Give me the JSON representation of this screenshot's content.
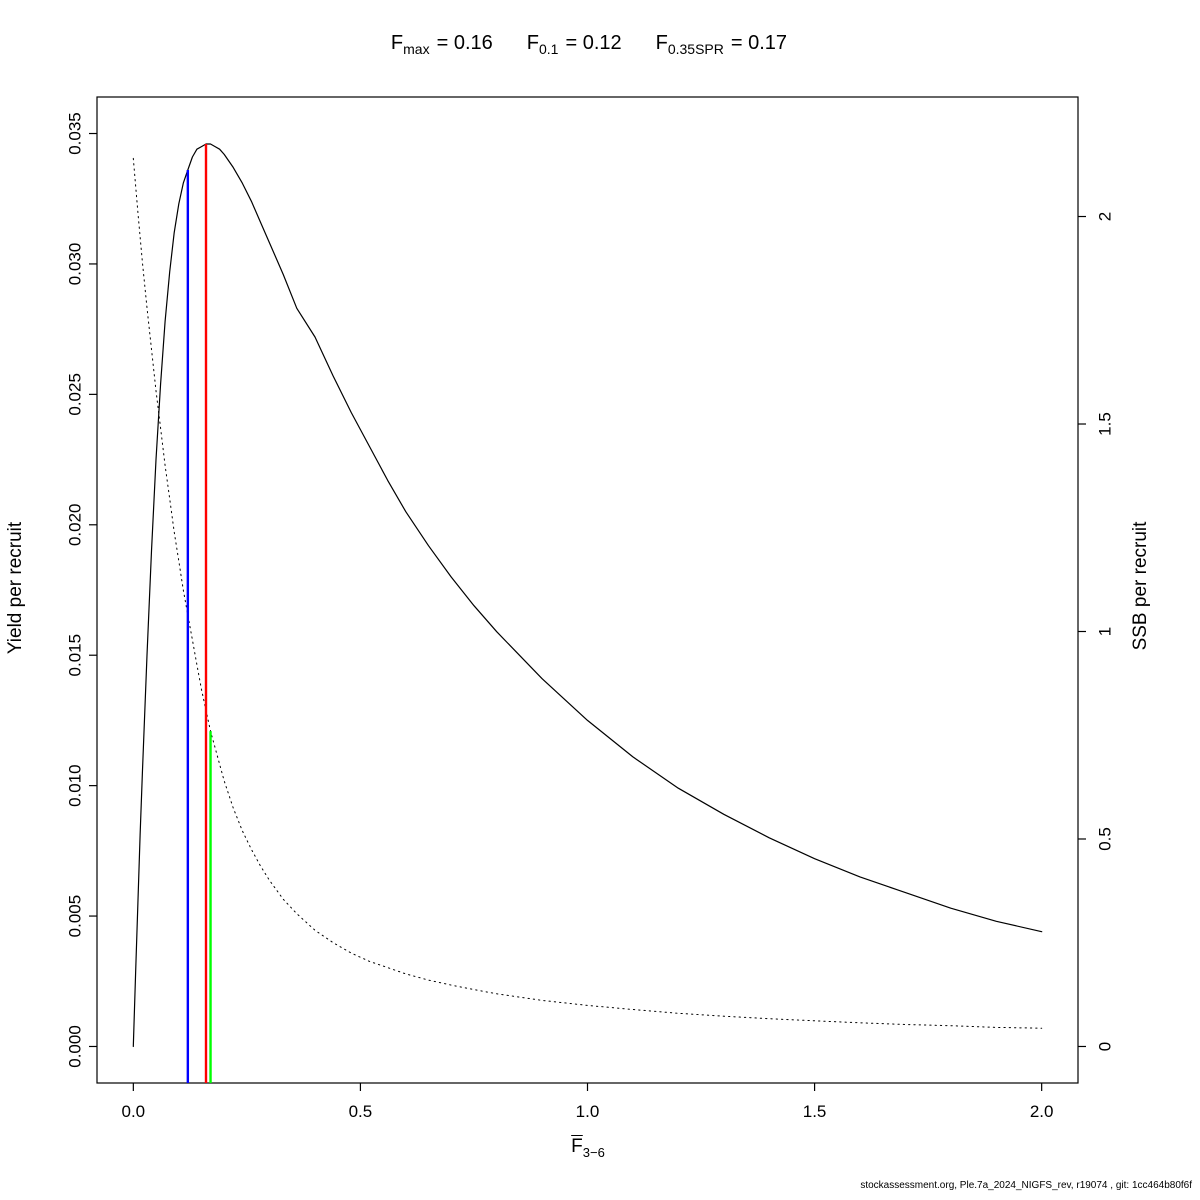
{
  "title": {
    "segments": [
      {
        "base": "F",
        "sub": "max",
        "value": "= 0.16"
      },
      {
        "base": "F",
        "sub": "0.1",
        "value": "= 0.12"
      },
      {
        "base": "F",
        "sub": "0.35SPR",
        "value": "= 0.17"
      }
    ]
  },
  "footer": {
    "credit": "stockassessment.org, Ple.7a_2024_NIGFS_rev, r19074 , git: 1cc464b80f6f"
  },
  "chart_data": {
    "type": "line",
    "title": "Fmax = 0.16   F0.1 = 0.12   F0.35SPR = 0.17",
    "xlabel": {
      "base": "F",
      "sub": "3−6"
    },
    "ylabel_left": "Yield per recruit",
    "ylabel_right": "SSB per recruit",
    "xlim": [
      0,
      2
    ],
    "ylim_left": [
      0,
      0.035
    ],
    "ylim_right": [
      0,
      2.2
    ],
    "grid": false,
    "legend": null,
    "x_ticks": [
      0,
      0.5,
      1,
      1.5,
      2
    ],
    "x_tick_labels": [
      "0.0",
      "0.5",
      "1.0",
      "1.5",
      "2.0"
    ],
    "y_left_ticks": [
      0,
      0.005,
      0.01,
      0.015,
      0.02,
      0.025,
      0.03,
      0.035
    ],
    "y_left_tick_labels": [
      "0.000",
      "0.005",
      "0.010",
      "0.015",
      "0.020",
      "0.025",
      "0.030",
      "0.035"
    ],
    "y_right_ticks": [
      0,
      0.5,
      1,
      1.5,
      2
    ],
    "y_right_tick_labels": [
      "0",
      "0.5",
      "1",
      "1.5",
      "2"
    ],
    "series": [
      {
        "name": "yield-per-recruit",
        "axis": "left",
        "style": "solid",
        "color": "#000000",
        "points": [
          [
            0.0,
            0.0
          ],
          [
            0.005,
            0.0028
          ],
          [
            0.01,
            0.0055
          ],
          [
            0.015,
            0.0081
          ],
          [
            0.02,
            0.0105
          ],
          [
            0.03,
            0.015
          ],
          [
            0.04,
            0.019
          ],
          [
            0.05,
            0.0225
          ],
          [
            0.06,
            0.0254
          ],
          [
            0.07,
            0.0278
          ],
          [
            0.08,
            0.0297
          ],
          [
            0.09,
            0.0312
          ],
          [
            0.1,
            0.0323
          ],
          [
            0.11,
            0.0331
          ],
          [
            0.12,
            0.0336
          ],
          [
            0.13,
            0.0341
          ],
          [
            0.14,
            0.0344
          ],
          [
            0.15,
            0.0345
          ],
          [
            0.16,
            0.0346
          ],
          [
            0.17,
            0.0346
          ],
          [
            0.18,
            0.0345
          ],
          [
            0.19,
            0.0344
          ],
          [
            0.2,
            0.0342
          ],
          [
            0.22,
            0.0337
          ],
          [
            0.24,
            0.0331
          ],
          [
            0.26,
            0.0324
          ],
          [
            0.28,
            0.0316
          ],
          [
            0.3,
            0.0308
          ],
          [
            0.33,
            0.0296
          ],
          [
            0.36,
            0.0283
          ],
          [
            0.4,
            0.0272
          ],
          [
            0.44,
            0.0257
          ],
          [
            0.48,
            0.0243
          ],
          [
            0.52,
            0.023
          ],
          [
            0.56,
            0.0217
          ],
          [
            0.6,
            0.0205
          ],
          [
            0.65,
            0.0192
          ],
          [
            0.7,
            0.018
          ],
          [
            0.75,
            0.0169
          ],
          [
            0.8,
            0.0159
          ],
          [
            0.85,
            0.015
          ],
          [
            0.9,
            0.0141
          ],
          [
            0.95,
            0.0133
          ],
          [
            1.0,
            0.0125
          ],
          [
            1.1,
            0.0111
          ],
          [
            1.2,
            0.0099
          ],
          [
            1.3,
            0.0089
          ],
          [
            1.4,
            0.008
          ],
          [
            1.5,
            0.0072
          ],
          [
            1.6,
            0.0065
          ],
          [
            1.7,
            0.0059
          ],
          [
            1.8,
            0.0053
          ],
          [
            1.9,
            0.0048
          ],
          [
            2.0,
            0.0044
          ]
        ]
      },
      {
        "name": "ssb-per-recruit",
        "axis": "right",
        "style": "dotted",
        "color": "#000000",
        "points": [
          [
            0.0,
            2.14
          ],
          [
            0.01,
            2.01
          ],
          [
            0.02,
            1.89
          ],
          [
            0.03,
            1.78
          ],
          [
            0.04,
            1.68
          ],
          [
            0.05,
            1.58
          ],
          [
            0.06,
            1.49
          ],
          [
            0.07,
            1.4
          ],
          [
            0.08,
            1.32
          ],
          [
            0.09,
            1.24
          ],
          [
            0.1,
            1.17
          ],
          [
            0.11,
            1.1
          ],
          [
            0.12,
            1.04
          ],
          [
            0.13,
            0.98
          ],
          [
            0.14,
            0.92
          ],
          [
            0.15,
            0.86
          ],
          [
            0.16,
            0.81
          ],
          [
            0.17,
            0.76
          ],
          [
            0.18,
            0.72
          ],
          [
            0.19,
            0.68
          ],
          [
            0.2,
            0.64
          ],
          [
            0.22,
            0.575
          ],
          [
            0.24,
            0.52
          ],
          [
            0.26,
            0.475
          ],
          [
            0.28,
            0.435
          ],
          [
            0.3,
            0.4
          ],
          [
            0.33,
            0.355
          ],
          [
            0.36,
            0.32
          ],
          [
            0.4,
            0.28
          ],
          [
            0.44,
            0.25
          ],
          [
            0.48,
            0.225
          ],
          [
            0.52,
            0.205
          ],
          [
            0.56,
            0.19
          ],
          [
            0.6,
            0.175
          ],
          [
            0.65,
            0.16
          ],
          [
            0.7,
            0.148
          ],
          [
            0.75,
            0.137
          ],
          [
            0.8,
            0.127
          ],
          [
            0.85,
            0.119
          ],
          [
            0.9,
            0.111
          ],
          [
            0.95,
            0.105
          ],
          [
            1.0,
            0.099
          ],
          [
            1.1,
            0.089
          ],
          [
            1.2,
            0.08
          ],
          [
            1.3,
            0.073
          ],
          [
            1.4,
            0.067
          ],
          [
            1.5,
            0.062
          ],
          [
            1.6,
            0.057
          ],
          [
            1.7,
            0.053
          ],
          [
            1.8,
            0.05
          ],
          [
            1.9,
            0.046
          ],
          [
            2.0,
            0.044
          ]
        ]
      }
    ],
    "reference_lines": [
      {
        "name": "F0.1",
        "x": 0.12,
        "axis": "left",
        "top_value": 0.0336,
        "color": "#0000FF"
      },
      {
        "name": "Fmax",
        "x": 0.16,
        "axis": "left",
        "top_value": 0.0346,
        "color": "#FF0000"
      },
      {
        "name": "F0.35SPR",
        "x": 0.17,
        "axis": "right",
        "top_value": 0.76,
        "color": "#00FF00"
      }
    ]
  }
}
